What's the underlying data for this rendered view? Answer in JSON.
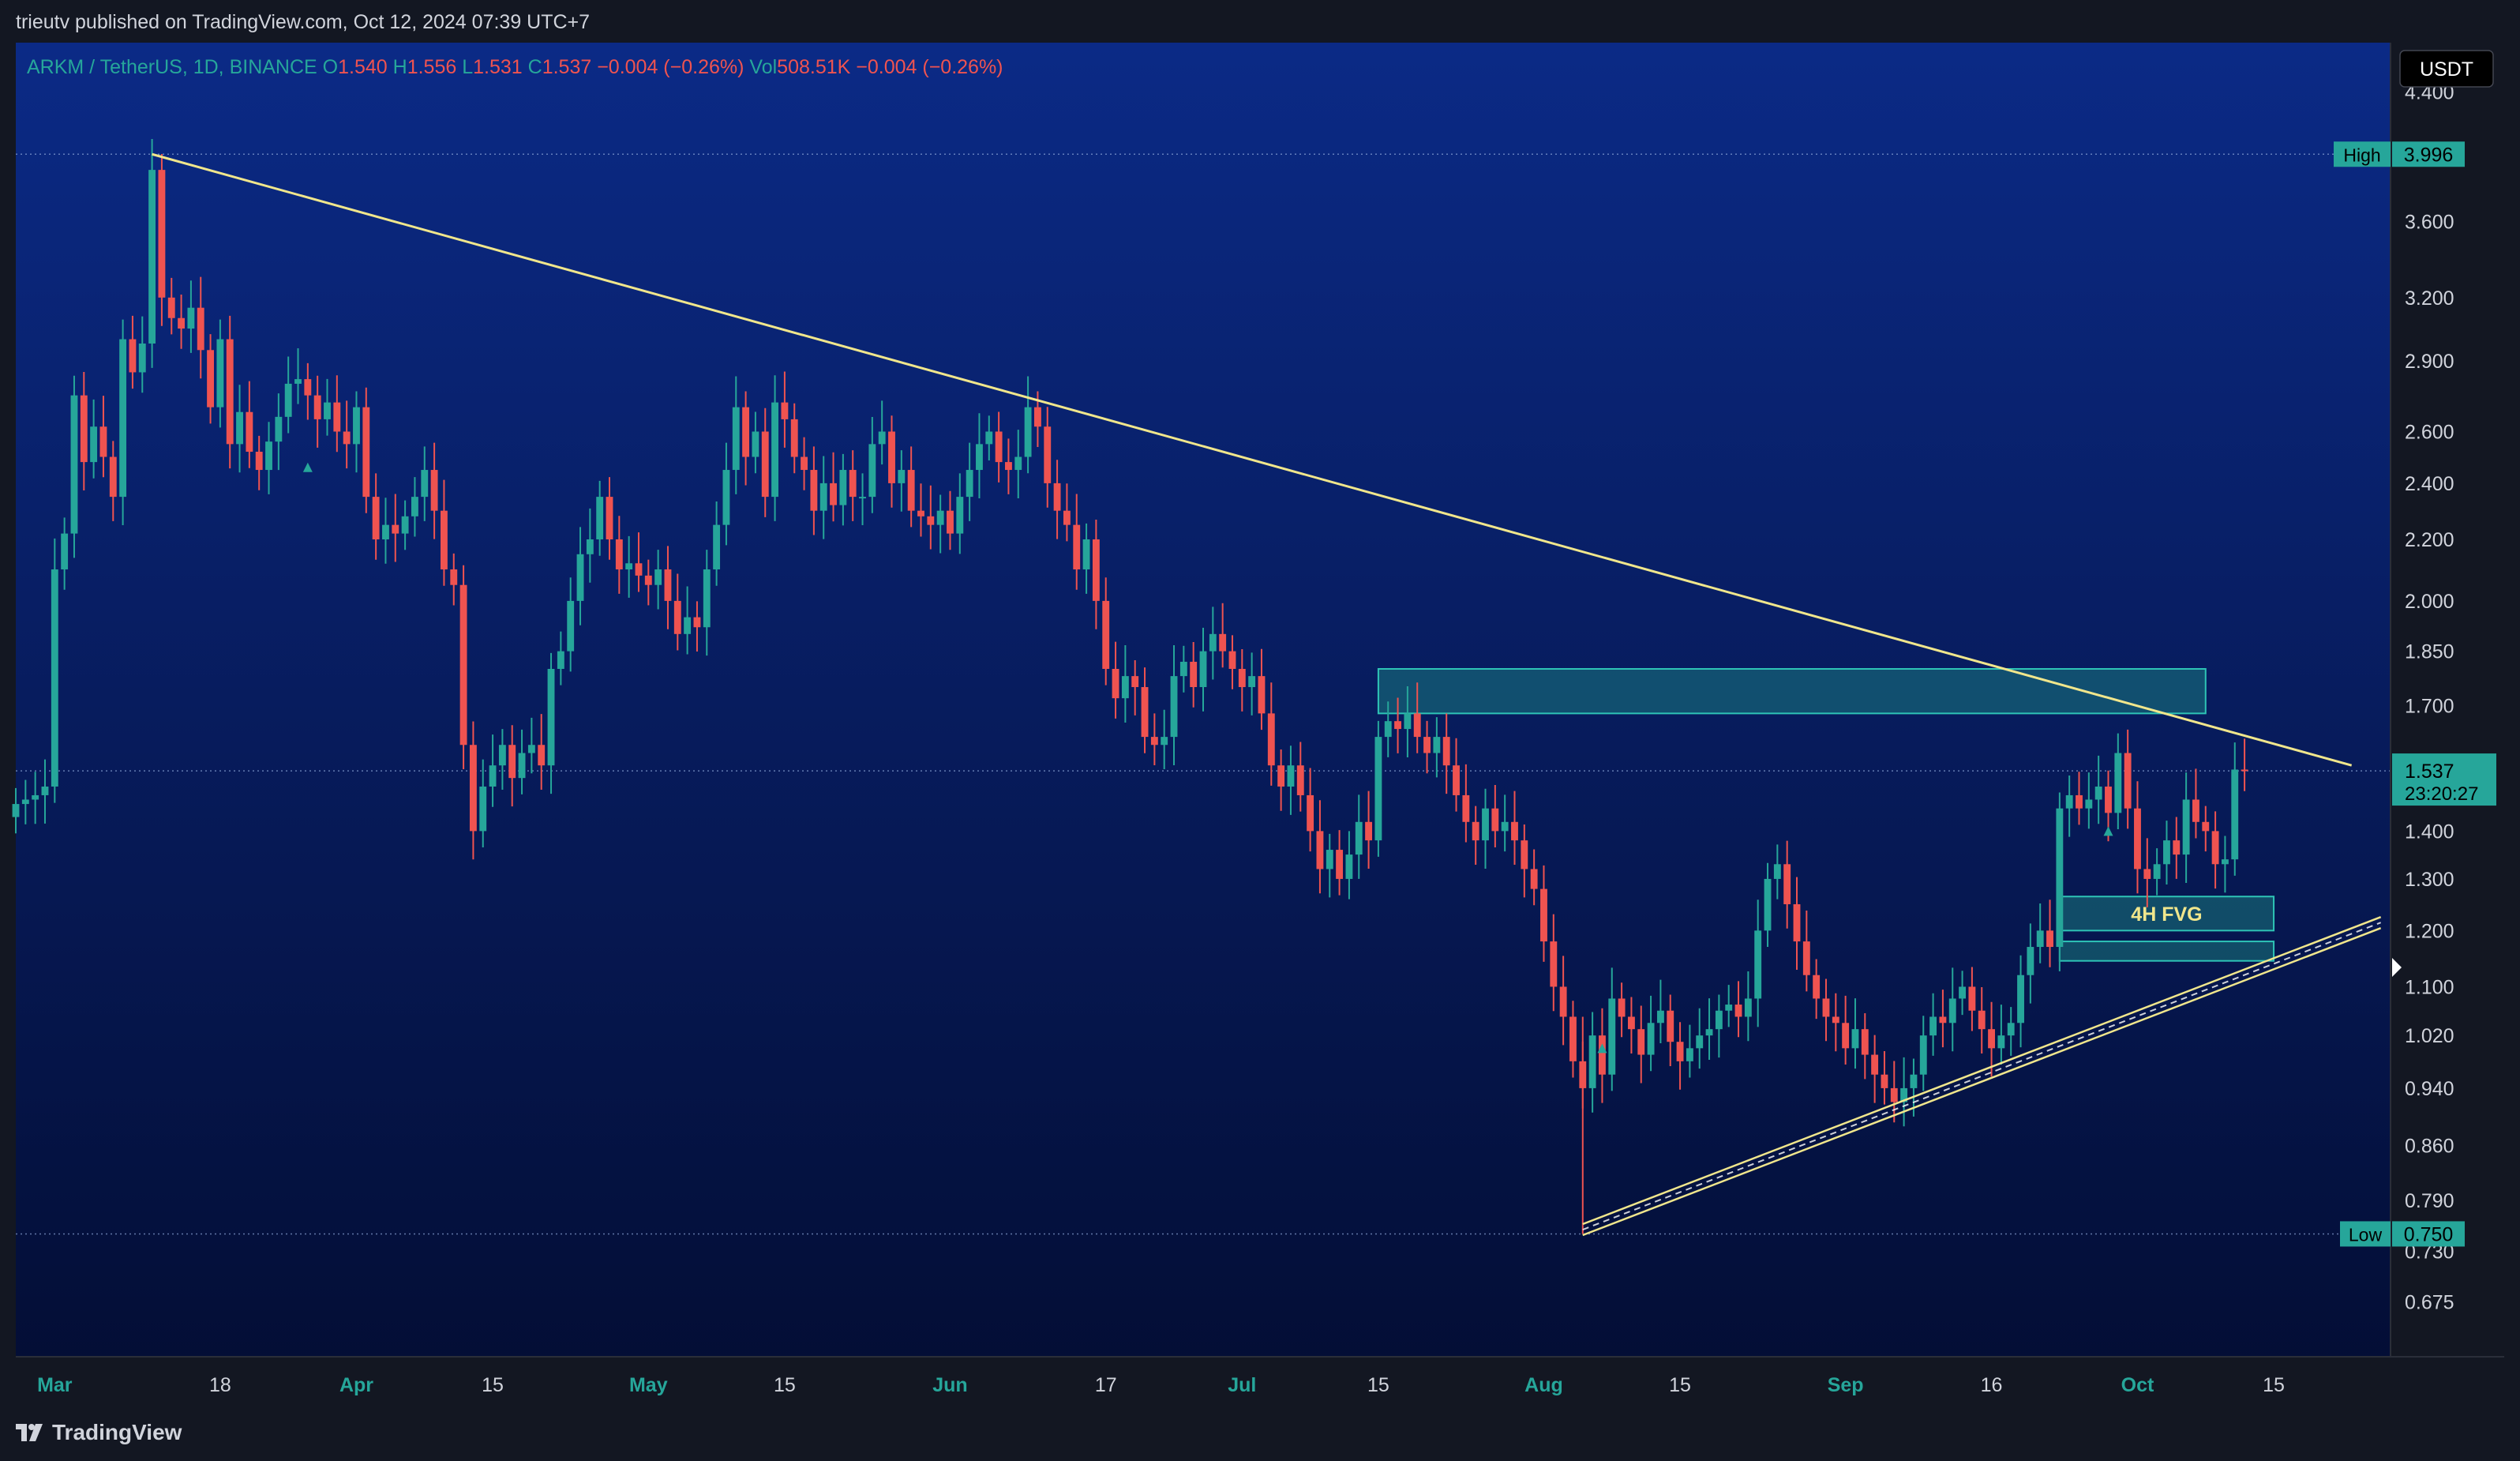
{
  "header": {
    "published": "trieutv published on TradingView.com, Oct 12, 2024 07:39 UTC+7"
  },
  "legend": {
    "symbol": "ARKM / TetherUS, 1D, BINANCE",
    "o_label": "O",
    "o": "1.540",
    "h_label": "H",
    "h": "1.556",
    "l_label": "L",
    "l": "1.531",
    "c_label": "C",
    "c": "1.537",
    "change": "−0.004 (−0.26%)",
    "vol_label": "Vol",
    "vol": "508.51K",
    "vol_change": "−0.004 (−0.26%)"
  },
  "price_axis": {
    "currency": "USDT",
    "ticks": [
      "4.400",
      "3.600",
      "3.200",
      "2.900",
      "2.600",
      "2.400",
      "2.200",
      "2.000",
      "1.850",
      "1.700",
      "1.400",
      "1.300",
      "1.200",
      "1.100",
      "1.020",
      "0.940",
      "0.860",
      "0.790",
      "0.730",
      "0.675"
    ],
    "high_label": "High",
    "high_value": "3.996",
    "low_label": "Low",
    "low_value": "0.750",
    "last_price": "1.537",
    "countdown": "23:20:27"
  },
  "time_axis": {
    "labels": [
      {
        "text": "Mar",
        "date": "2024-03-01",
        "bold": true
      },
      {
        "text": "18",
        "date": "2024-03-18",
        "bold": false
      },
      {
        "text": "Apr",
        "date": "2024-04-01",
        "bold": true
      },
      {
        "text": "15",
        "date": "2024-04-15",
        "bold": false
      },
      {
        "text": "May",
        "date": "2024-05-01",
        "bold": true
      },
      {
        "text": "15",
        "date": "2024-05-15",
        "bold": false
      },
      {
        "text": "Jun",
        "date": "2024-06-01",
        "bold": true
      },
      {
        "text": "17",
        "date": "2024-06-17",
        "bold": false
      },
      {
        "text": "Jul",
        "date": "2024-07-01",
        "bold": true
      },
      {
        "text": "15",
        "date": "2024-07-15",
        "bold": false
      },
      {
        "text": "Aug",
        "date": "2024-08-01",
        "bold": true
      },
      {
        "text": "15",
        "date": "2024-08-15",
        "bold": false
      },
      {
        "text": "Sep",
        "date": "2024-09-01",
        "bold": true
      },
      {
        "text": "16",
        "date": "2024-09-16",
        "bold": false
      },
      {
        "text": "Oct",
        "date": "2024-10-01",
        "bold": true
      },
      {
        "text": "15",
        "date": "2024-10-15",
        "bold": false
      }
    ]
  },
  "annotations": {
    "fvg_label": "4H FVG"
  },
  "footer": {
    "brand": "TradingView"
  },
  "colors": {
    "up": "#26a69a",
    "down": "#ef5350",
    "trendline": "#f0e68c",
    "zone_fill": "#1f8f85",
    "zone_border": "#2ec4b6",
    "bg_top": "#0b2a86",
    "bg_bottom": "#030d33",
    "axis_text": "#d1d4dc"
  },
  "chart_data": {
    "type": "candlestick",
    "symbol": "ARKM / TetherUS",
    "interval": "1D",
    "exchange": "BINANCE",
    "scale": "log",
    "ylim": [
      0.62,
      4.75
    ],
    "xlim": [
      "2024-02-26",
      "2024-10-27"
    ],
    "candles_close": [
      {
        "d": "2024-02-26",
        "c": 1.46
      },
      {
        "d": "2024-02-27",
        "c": 1.47
      },
      {
        "d": "2024-02-28",
        "c": 1.48
      },
      {
        "d": "2024-02-29",
        "c": 1.5
      },
      {
        "d": "2024-03-01",
        "c": 2.1
      },
      {
        "d": "2024-03-02",
        "c": 2.22
      },
      {
        "d": "2024-03-03",
        "c": 2.75
      },
      {
        "d": "2024-03-04",
        "c": 2.48
      },
      {
        "d": "2024-03-05",
        "c": 2.62
      },
      {
        "d": "2024-03-06",
        "c": 2.5
      },
      {
        "d": "2024-03-07",
        "c": 2.35
      },
      {
        "d": "2024-03-08",
        "c": 3.0
      },
      {
        "d": "2024-03-09",
        "c": 2.85
      },
      {
        "d": "2024-03-10",
        "c": 2.98
      },
      {
        "d": "2024-03-11",
        "c": 3.9
      },
      {
        "d": "2024-03-12",
        "c": 3.2
      },
      {
        "d": "2024-03-13",
        "c": 3.1
      },
      {
        "d": "2024-03-14",
        "c": 3.05
      },
      {
        "d": "2024-03-15",
        "c": 3.15
      },
      {
        "d": "2024-03-16",
        "c": 2.95
      },
      {
        "d": "2024-03-17",
        "c": 2.7
      },
      {
        "d": "2024-03-18",
        "c": 3.0
      },
      {
        "d": "2024-03-19",
        "c": 2.55
      },
      {
        "d": "2024-03-20",
        "c": 2.68
      },
      {
        "d": "2024-03-21",
        "c": 2.52
      },
      {
        "d": "2024-03-22",
        "c": 2.45
      },
      {
        "d": "2024-03-23",
        "c": 2.56
      },
      {
        "d": "2024-03-24",
        "c": 2.66
      },
      {
        "d": "2024-03-25",
        "c": 2.8
      },
      {
        "d": "2024-03-26",
        "c": 2.82
      },
      {
        "d": "2024-03-27",
        "c": 2.75
      },
      {
        "d": "2024-03-28",
        "c": 2.65
      },
      {
        "d": "2024-03-29",
        "c": 2.72
      },
      {
        "d": "2024-03-30",
        "c": 2.6
      },
      {
        "d": "2024-03-31",
        "c": 2.55
      },
      {
        "d": "2024-04-01",
        "c": 2.7
      },
      {
        "d": "2024-04-02",
        "c": 2.35
      },
      {
        "d": "2024-04-03",
        "c": 2.2
      },
      {
        "d": "2024-04-04",
        "c": 2.25
      },
      {
        "d": "2024-04-05",
        "c": 2.22
      },
      {
        "d": "2024-04-06",
        "c": 2.28
      },
      {
        "d": "2024-04-07",
        "c": 2.35
      },
      {
        "d": "2024-04-08",
        "c": 2.45
      },
      {
        "d": "2024-04-09",
        "c": 2.3
      },
      {
        "d": "2024-04-10",
        "c": 2.1
      },
      {
        "d": "2024-04-11",
        "c": 2.05
      },
      {
        "d": "2024-04-12",
        "c": 1.6
      },
      {
        "d": "2024-04-13",
        "c": 1.4
      },
      {
        "d": "2024-04-14",
        "c": 1.5
      },
      {
        "d": "2024-04-15",
        "c": 1.55
      },
      {
        "d": "2024-04-16",
        "c": 1.6
      },
      {
        "d": "2024-04-17",
        "c": 1.52
      },
      {
        "d": "2024-04-18",
        "c": 1.58
      },
      {
        "d": "2024-04-19",
        "c": 1.6
      },
      {
        "d": "2024-04-20",
        "c": 1.55
      },
      {
        "d": "2024-04-21",
        "c": 1.8
      },
      {
        "d": "2024-04-22",
        "c": 1.85
      },
      {
        "d": "2024-04-23",
        "c": 2.0
      },
      {
        "d": "2024-04-24",
        "c": 2.15
      },
      {
        "d": "2024-04-25",
        "c": 2.2
      },
      {
        "d": "2024-04-26",
        "c": 2.35
      },
      {
        "d": "2024-04-27",
        "c": 2.2
      },
      {
        "d": "2024-04-28",
        "c": 2.1
      },
      {
        "d": "2024-04-29",
        "c": 2.12
      },
      {
        "d": "2024-04-30",
        "c": 2.08
      },
      {
        "d": "2024-05-01",
        "c": 2.05
      },
      {
        "d": "2024-05-02",
        "c": 2.1
      },
      {
        "d": "2024-05-03",
        "c": 2.0
      },
      {
        "d": "2024-05-04",
        "c": 1.9
      },
      {
        "d": "2024-05-05",
        "c": 1.95
      },
      {
        "d": "2024-05-06",
        "c": 1.92
      },
      {
        "d": "2024-05-07",
        "c": 2.1
      },
      {
        "d": "2024-05-08",
        "c": 2.25
      },
      {
        "d": "2024-05-09",
        "c": 2.45
      },
      {
        "d": "2024-05-10",
        "c": 2.7
      },
      {
        "d": "2024-05-11",
        "c": 2.5
      },
      {
        "d": "2024-05-12",
        "c": 2.6
      },
      {
        "d": "2024-05-13",
        "c": 2.35
      },
      {
        "d": "2024-05-14",
        "c": 2.72
      },
      {
        "d": "2024-05-15",
        "c": 2.65
      },
      {
        "d": "2024-05-16",
        "c": 2.5
      },
      {
        "d": "2024-05-17",
        "c": 2.45
      },
      {
        "d": "2024-05-18",
        "c": 2.3
      },
      {
        "d": "2024-05-19",
        "c": 2.4
      },
      {
        "d": "2024-05-20",
        "c": 2.32
      },
      {
        "d": "2024-05-21",
        "c": 2.45
      },
      {
        "d": "2024-05-22",
        "c": 2.35
      },
      {
        "d": "2024-05-23",
        "c": 2.35
      },
      {
        "d": "2024-05-24",
        "c": 2.55
      },
      {
        "d": "2024-05-25",
        "c": 2.6
      },
      {
        "d": "2024-05-26",
        "c": 2.4
      },
      {
        "d": "2024-05-27",
        "c": 2.45
      },
      {
        "d": "2024-05-28",
        "c": 2.3
      },
      {
        "d": "2024-05-29",
        "c": 2.28
      },
      {
        "d": "2024-05-30",
        "c": 2.25
      },
      {
        "d": "2024-05-31",
        "c": 2.3
      },
      {
        "d": "2024-06-01",
        "c": 2.22
      },
      {
        "d": "2024-06-02",
        "c": 2.35
      },
      {
        "d": "2024-06-03",
        "c": 2.45
      },
      {
        "d": "2024-06-04",
        "c": 2.55
      },
      {
        "d": "2024-06-05",
        "c": 2.6
      },
      {
        "d": "2024-06-06",
        "c": 2.48
      },
      {
        "d": "2024-06-07",
        "c": 2.45
      },
      {
        "d": "2024-06-08",
        "c": 2.5
      },
      {
        "d": "2024-06-09",
        "c": 2.7
      },
      {
        "d": "2024-06-10",
        "c": 2.62
      },
      {
        "d": "2024-06-11",
        "c": 2.4
      },
      {
        "d": "2024-06-12",
        "c": 2.3
      },
      {
        "d": "2024-06-13",
        "c": 2.25
      },
      {
        "d": "2024-06-14",
        "c": 2.1
      },
      {
        "d": "2024-06-15",
        "c": 2.2
      },
      {
        "d": "2024-06-16",
        "c": 2.0
      },
      {
        "d": "2024-06-17",
        "c": 1.8
      },
      {
        "d": "2024-06-18",
        "c": 1.72
      },
      {
        "d": "2024-06-19",
        "c": 1.78
      },
      {
        "d": "2024-06-20",
        "c": 1.75
      },
      {
        "d": "2024-06-21",
        "c": 1.62
      },
      {
        "d": "2024-06-22",
        "c": 1.6
      },
      {
        "d": "2024-06-23",
        "c": 1.62
      },
      {
        "d": "2024-06-24",
        "c": 1.78
      },
      {
        "d": "2024-06-25",
        "c": 1.82
      },
      {
        "d": "2024-06-26",
        "c": 1.75
      },
      {
        "d": "2024-06-27",
        "c": 1.85
      },
      {
        "d": "2024-06-28",
        "c": 1.9
      },
      {
        "d": "2024-06-29",
        "c": 1.85
      },
      {
        "d": "2024-06-30",
        "c": 1.8
      },
      {
        "d": "2024-07-01",
        "c": 1.75
      },
      {
        "d": "2024-07-02",
        "c": 1.78
      },
      {
        "d": "2024-07-03",
        "c": 1.68
      },
      {
        "d": "2024-07-04",
        "c": 1.55
      },
      {
        "d": "2024-07-05",
        "c": 1.5
      },
      {
        "d": "2024-07-06",
        "c": 1.55
      },
      {
        "d": "2024-07-07",
        "c": 1.48
      },
      {
        "d": "2024-07-08",
        "c": 1.4
      },
      {
        "d": "2024-07-09",
        "c": 1.32
      },
      {
        "d": "2024-07-10",
        "c": 1.36
      },
      {
        "d": "2024-07-11",
        "c": 1.3
      },
      {
        "d": "2024-07-12",
        "c": 1.35
      },
      {
        "d": "2024-07-13",
        "c": 1.42
      },
      {
        "d": "2024-07-14",
        "c": 1.38
      },
      {
        "d": "2024-07-15",
        "c": 1.62
      },
      {
        "d": "2024-07-16",
        "c": 1.66
      },
      {
        "d": "2024-07-17",
        "c": 1.64
      },
      {
        "d": "2024-07-18",
        "c": 1.68
      },
      {
        "d": "2024-07-19",
        "c": 1.62
      },
      {
        "d": "2024-07-20",
        "c": 1.58
      },
      {
        "d": "2024-07-21",
        "c": 1.62
      },
      {
        "d": "2024-07-22",
        "c": 1.55
      },
      {
        "d": "2024-07-23",
        "c": 1.48
      },
      {
        "d": "2024-07-24",
        "c": 1.42
      },
      {
        "d": "2024-07-25",
        "c": 1.38
      },
      {
        "d": "2024-07-26",
        "c": 1.45
      },
      {
        "d": "2024-07-27",
        "c": 1.4
      },
      {
        "d": "2024-07-28",
        "c": 1.42
      },
      {
        "d": "2024-07-29",
        "c": 1.38
      },
      {
        "d": "2024-07-30",
        "c": 1.32
      },
      {
        "d": "2024-07-31",
        "c": 1.28
      },
      {
        "d": "2024-08-01",
        "c": 1.18
      },
      {
        "d": "2024-08-02",
        "c": 1.1
      },
      {
        "d": "2024-08-03",
        "c": 1.05
      },
      {
        "d": "2024-08-04",
        "c": 0.98
      },
      {
        "d": "2024-08-05",
        "c": 0.94
      },
      {
        "d": "2024-08-06",
        "c": 1.02
      },
      {
        "d": "2024-08-07",
        "c": 0.96
      },
      {
        "d": "2024-08-08",
        "c": 1.08
      },
      {
        "d": "2024-08-09",
        "c": 1.05
      },
      {
        "d": "2024-08-10",
        "c": 1.03
      },
      {
        "d": "2024-08-11",
        "c": 0.99
      },
      {
        "d": "2024-08-12",
        "c": 1.04
      },
      {
        "d": "2024-08-13",
        "c": 1.06
      },
      {
        "d": "2024-08-14",
        "c": 1.01
      },
      {
        "d": "2024-08-15",
        "c": 0.98
      },
      {
        "d": "2024-08-16",
        "c": 1.0
      },
      {
        "d": "2024-08-17",
        "c": 1.02
      },
      {
        "d": "2024-08-18",
        "c": 1.03
      },
      {
        "d": "2024-08-19",
        "c": 1.06
      },
      {
        "d": "2024-08-20",
        "c": 1.07
      },
      {
        "d": "2024-08-21",
        "c": 1.05
      },
      {
        "d": "2024-08-22",
        "c": 1.08
      },
      {
        "d": "2024-08-23",
        "c": 1.2
      },
      {
        "d": "2024-08-24",
        "c": 1.3
      },
      {
        "d": "2024-08-25",
        "c": 1.33
      },
      {
        "d": "2024-08-26",
        "c": 1.25
      },
      {
        "d": "2024-08-27",
        "c": 1.18
      },
      {
        "d": "2024-08-28",
        "c": 1.12
      },
      {
        "d": "2024-08-29",
        "c": 1.08
      },
      {
        "d": "2024-08-30",
        "c": 1.05
      },
      {
        "d": "2024-08-31",
        "c": 1.04
      },
      {
        "d": "2024-09-01",
        "c": 1.0
      },
      {
        "d": "2024-09-02",
        "c": 1.03
      },
      {
        "d": "2024-09-03",
        "c": 0.99
      },
      {
        "d": "2024-09-04",
        "c": 0.96
      },
      {
        "d": "2024-09-05",
        "c": 0.94
      },
      {
        "d": "2024-09-06",
        "c": 0.92
      },
      {
        "d": "2024-09-07",
        "c": 0.94
      },
      {
        "d": "2024-09-08",
        "c": 0.96
      },
      {
        "d": "2024-09-09",
        "c": 1.02
      },
      {
        "d": "2024-09-10",
        "c": 1.05
      },
      {
        "d": "2024-09-11",
        "c": 1.04
      },
      {
        "d": "2024-09-12",
        "c": 1.08
      },
      {
        "d": "2024-09-13",
        "c": 1.1
      },
      {
        "d": "2024-09-14",
        "c": 1.06
      },
      {
        "d": "2024-09-15",
        "c": 1.03
      },
      {
        "d": "2024-09-16",
        "c": 1.0
      },
      {
        "d": "2024-09-17",
        "c": 1.02
      },
      {
        "d": "2024-09-18",
        "c": 1.04
      },
      {
        "d": "2024-09-19",
        "c": 1.12
      },
      {
        "d": "2024-09-20",
        "c": 1.17
      },
      {
        "d": "2024-09-21",
        "c": 1.2
      },
      {
        "d": "2024-09-22",
        "c": 1.17
      },
      {
        "d": "2024-09-23",
        "c": 1.45
      },
      {
        "d": "2024-09-24",
        "c": 1.48
      },
      {
        "d": "2024-09-25",
        "c": 1.45
      },
      {
        "d": "2024-09-26",
        "c": 1.47
      },
      {
        "d": "2024-09-27",
        "c": 1.5
      },
      {
        "d": "2024-09-28",
        "c": 1.44
      },
      {
        "d": "2024-09-29",
        "c": 1.58
      },
      {
        "d": "2024-09-30",
        "c": 1.45
      },
      {
        "d": "2024-10-01",
        "c": 1.32
      },
      {
        "d": "2024-10-02",
        "c": 1.3
      },
      {
        "d": "2024-10-03",
        "c": 1.33
      },
      {
        "d": "2024-10-04",
        "c": 1.38
      },
      {
        "d": "2024-10-05",
        "c": 1.35
      },
      {
        "d": "2024-10-06",
        "c": 1.47
      },
      {
        "d": "2024-10-07",
        "c": 1.42
      },
      {
        "d": "2024-10-08",
        "c": 1.4
      },
      {
        "d": "2024-10-09",
        "c": 1.33
      },
      {
        "d": "2024-10-10",
        "c": 1.34
      },
      {
        "d": "2024-10-11",
        "c": 1.54
      },
      {
        "d": "2024-10-12",
        "c": 1.537
      }
    ],
    "last_candle": {
      "d": "2024-10-12",
      "o": 1.54,
      "h": 1.556,
      "l": 1.531,
      "c": 1.537
    },
    "high": {
      "d": "2024-03-11",
      "value": 3.996
    },
    "low": {
      "d": "2024-08-05",
      "value": 0.75
    },
    "trendlines": [
      {
        "kind": "descending",
        "from": {
          "d": "2024-03-11",
          "v": 3.996
        },
        "to": {
          "d": "2024-10-23",
          "v": 1.55
        }
      },
      {
        "kind": "ascending-channel",
        "from": {
          "d": "2024-08-05",
          "v": 0.755
        },
        "to": {
          "d": "2024-10-26",
          "v": 1.215
        }
      }
    ],
    "zones": [
      {
        "label": "",
        "from": "2024-07-15",
        "to": "2024-10-08",
        "top": 1.8,
        "bottom": 1.68
      },
      {
        "label": "4H FVG",
        "from": "2024-09-23",
        "to": "2024-10-15",
        "top": 1.265,
        "bottom": 1.2
      },
      {
        "label": "",
        "from": "2024-09-23",
        "to": "2024-10-15",
        "top": 1.18,
        "bottom": 1.145
      }
    ]
  }
}
